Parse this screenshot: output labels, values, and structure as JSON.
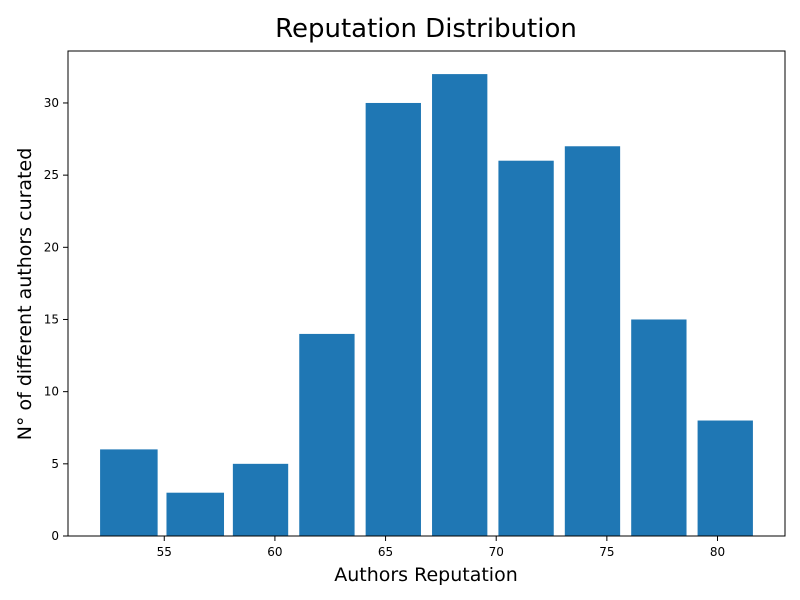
{
  "chart_data": {
    "type": "bar",
    "title": "Reputation Distribution",
    "xlabel": "Authors Reputation",
    "ylabel": "N° of different authors curated",
    "bar_color": "#1f77b4",
    "bins": [
      {
        "start": 52.1,
        "end": 54.7,
        "value": 6
      },
      {
        "start": 55.1,
        "end": 57.7,
        "value": 3
      },
      {
        "start": 58.1,
        "end": 60.6,
        "value": 5
      },
      {
        "start": 61.1,
        "end": 63.6,
        "value": 14
      },
      {
        "start": 64.1,
        "end": 66.6,
        "value": 30
      },
      {
        "start": 67.1,
        "end": 69.6,
        "value": 32
      },
      {
        "start": 70.1,
        "end": 72.6,
        "value": 26
      },
      {
        "start": 73.1,
        "end": 75.6,
        "value": 27
      },
      {
        "start": 76.1,
        "end": 78.6,
        "value": 15
      },
      {
        "start": 79.1,
        "end": 81.6,
        "value": 8
      }
    ],
    "xticks": [
      55,
      60,
      65,
      70,
      75,
      80
    ],
    "yticks": [
      0,
      5,
      10,
      15,
      20,
      25,
      30
    ],
    "xlim": [
      50.65,
      83.05
    ],
    "ylim": [
      0,
      33.6
    ],
    "grid": false
  }
}
